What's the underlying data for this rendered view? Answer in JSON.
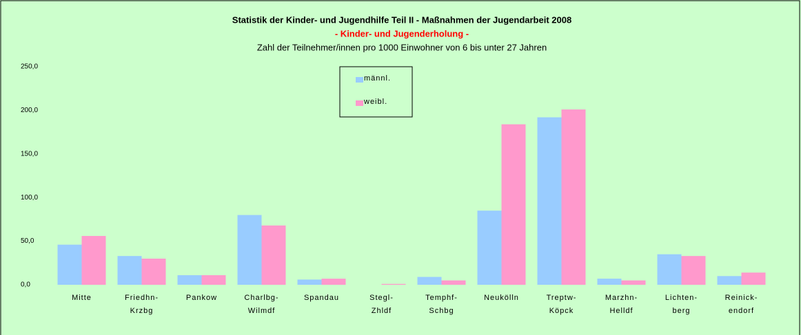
{
  "chart_data": {
    "type": "bar",
    "title": "Statistik der Kinder- und Jugendhilfe Teil II - Maßnahmen der Jugendarbeit 2008",
    "subtitle": "- Kinder- und Jugenderholung -",
    "description": "Zahl der Teilnehmer/innen pro 1000 Einwohner von 6 bis unter 27 Jahren",
    "categories": [
      "Mitte",
      "Friedhn-\nKrzbg",
      "Pankow",
      "Charlbg-\nWilmdf",
      "Spandau",
      "Stegl-\nZhldf",
      "Temphf-\nSchbg",
      "Neukölln",
      "Treptw-\nKöpck",
      "Marzhn-\nHelldf",
      "Lichten-\nberg",
      "Reinick-\nendorf"
    ],
    "series": [
      {
        "name": "männl.",
        "color": "#99ccff",
        "values": [
          46,
          33,
          11,
          80,
          6,
          0,
          9,
          85,
          192,
          7,
          35,
          10
        ]
      },
      {
        "name": "weibl.",
        "color": "#ff99cc",
        "values": [
          56,
          30,
          11,
          68,
          7,
          1,
          5,
          184,
          201,
          5,
          33,
          14
        ]
      }
    ],
    "ylim": [
      0,
      250
    ],
    "yticks": [
      {
        "value": 0,
        "label": "0,0"
      },
      {
        "value": 50,
        "label": "50,0"
      },
      {
        "value": 100,
        "label": "100,0"
      },
      {
        "value": 150,
        "label": "150,0"
      },
      {
        "value": 200,
        "label": "200,0"
      },
      {
        "value": 250,
        "label": "250,0"
      }
    ],
    "grid": false
  }
}
